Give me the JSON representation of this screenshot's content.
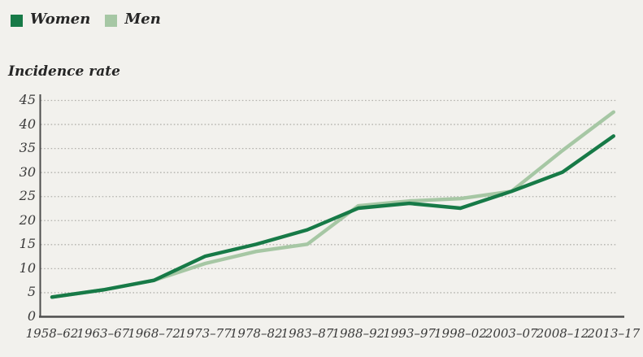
{
  "page": {
    "background": "#f2f1ed"
  },
  "legend": {
    "items": [
      {
        "label": "Women",
        "color": "#177a47"
      },
      {
        "label": "Men",
        "color": "#a6c7a4"
      }
    ]
  },
  "chart_data": {
    "type": "line",
    "title": "Incidence rate",
    "ylabel": "Incidence rate",
    "xlabel": "",
    "categories": [
      "1958–62",
      "1963–67",
      "1968–72",
      "1973–77",
      "1978–82",
      "1983–87",
      "1988–92",
      "1993–97",
      "1998–02",
      "2003–07",
      "2008–12",
      "2013–17"
    ],
    "series": [
      {
        "name": "Women",
        "color": "#177a47",
        "values": [
          4,
          5.5,
          7.5,
          12.5,
          15,
          18,
          22.5,
          23.5,
          22.5,
          26,
          30,
          37.5
        ]
      },
      {
        "name": "Men",
        "color": "#a6c7a4",
        "values": [
          4,
          5.5,
          7.5,
          11,
          13.5,
          15,
          23,
          24,
          24.5,
          26,
          34.5,
          42.5
        ]
      }
    ],
    "ylim": [
      0,
      45
    ],
    "y_ticks": [
      0,
      5,
      10,
      15,
      20,
      25,
      30,
      35,
      40,
      45
    ],
    "grid": "horizontal-dotted",
    "legend_position": "top-left",
    "axis_color": "#4d4d4d",
    "gridline_color": "#b3b2ad",
    "text_color": "#3a3a3a"
  }
}
